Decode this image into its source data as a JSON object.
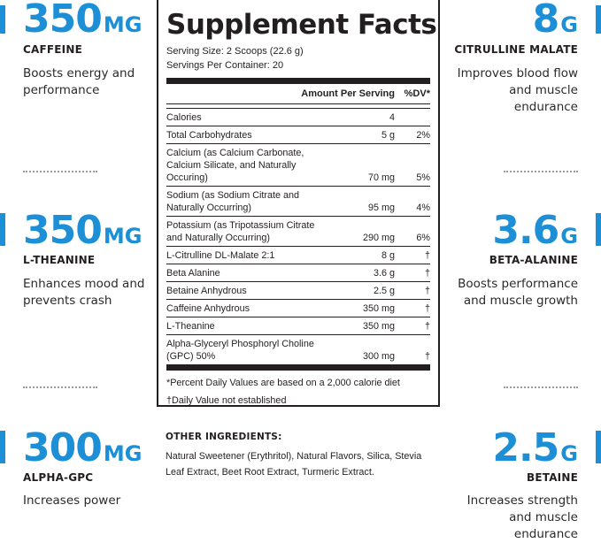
{
  "left": [
    {
      "amount": "350",
      "unit": "MG",
      "name": "CAFFEINE",
      "desc": "Boosts energy and performance"
    },
    {
      "amount": "350",
      "unit": "MG",
      "name": "L-THEANINE",
      "desc": "Enhances mood and prevents crash"
    },
    {
      "amount": "300",
      "unit": "MG",
      "name": "ALPHA-GPC",
      "desc": "Increases power"
    }
  ],
  "right": [
    {
      "amount": "8",
      "unit": "G",
      "name": "CITRULLINE MALATE",
      "desc": "Improves blood flow and muscle endurance"
    },
    {
      "amount": "3.6",
      "unit": "G",
      "name": "BETA-ALANINE",
      "desc": "Boosts performance and muscle growth"
    },
    {
      "amount": "2.5",
      "unit": "G",
      "name": "BETAINE",
      "desc": "Increases strength and muscle endurance"
    }
  ],
  "facts": {
    "title": "Supplement Facts",
    "serving_size": "Serving Size: 2 Scoops (22.6 g)",
    "servings_per_container": "Servings Per Container: 20",
    "header_amount": "Amount Per Serving",
    "header_dv": "%DV*",
    "rows": [
      {
        "name": "Calories",
        "amount": "4",
        "dv": ""
      },
      {
        "name": "Total Carbohydrates",
        "amount": "5 g",
        "dv": "2%"
      },
      {
        "name": "Calcium (as Calcium Carbonate, Calcium Silicate, and Naturally Occuring)",
        "amount": "70 mg",
        "dv": "5%"
      },
      {
        "name": "Sodium (as Sodium Citrate and Naturally Occurring)",
        "amount": "95 mg",
        "dv": "4%"
      },
      {
        "name": "Potassium (as Tripotassium Citrate and Naturally Occurring)",
        "amount": "290 mg",
        "dv": "6%"
      },
      {
        "name": "L-Citrulline DL-Malate 2:1",
        "amount": "8 g",
        "dv": "†"
      },
      {
        "name": "Beta Alanine",
        "amount": "3.6 g",
        "dv": "†"
      },
      {
        "name": "Betaine Anhydrous",
        "amount": "2.5 g",
        "dv": "†"
      },
      {
        "name": "Caffeine Anhydrous",
        "amount": "350 mg",
        "dv": "†"
      },
      {
        "name": "L-Theanine",
        "amount": "350 mg",
        "dv": "†"
      },
      {
        "name": "Alpha-Glyceryl Phosphoryl Choline (GPC) 50%",
        "amount": "300 mg",
        "dv": "†"
      }
    ],
    "footnote1": "*Percent Daily Values are based on a 2,000 calorie diet",
    "footnote2": "†Daily Value not established"
  },
  "other": {
    "title": "OTHER INGREDIENTS:",
    "text": "Natural Sweetener (Erythritol), Natural Flavors, Silica, Stevia Leaf Extract, Beet Root Extract, Turmeric Extract."
  },
  "colors": {
    "accent": "#1d8fd6",
    "text": "#231f20"
  }
}
